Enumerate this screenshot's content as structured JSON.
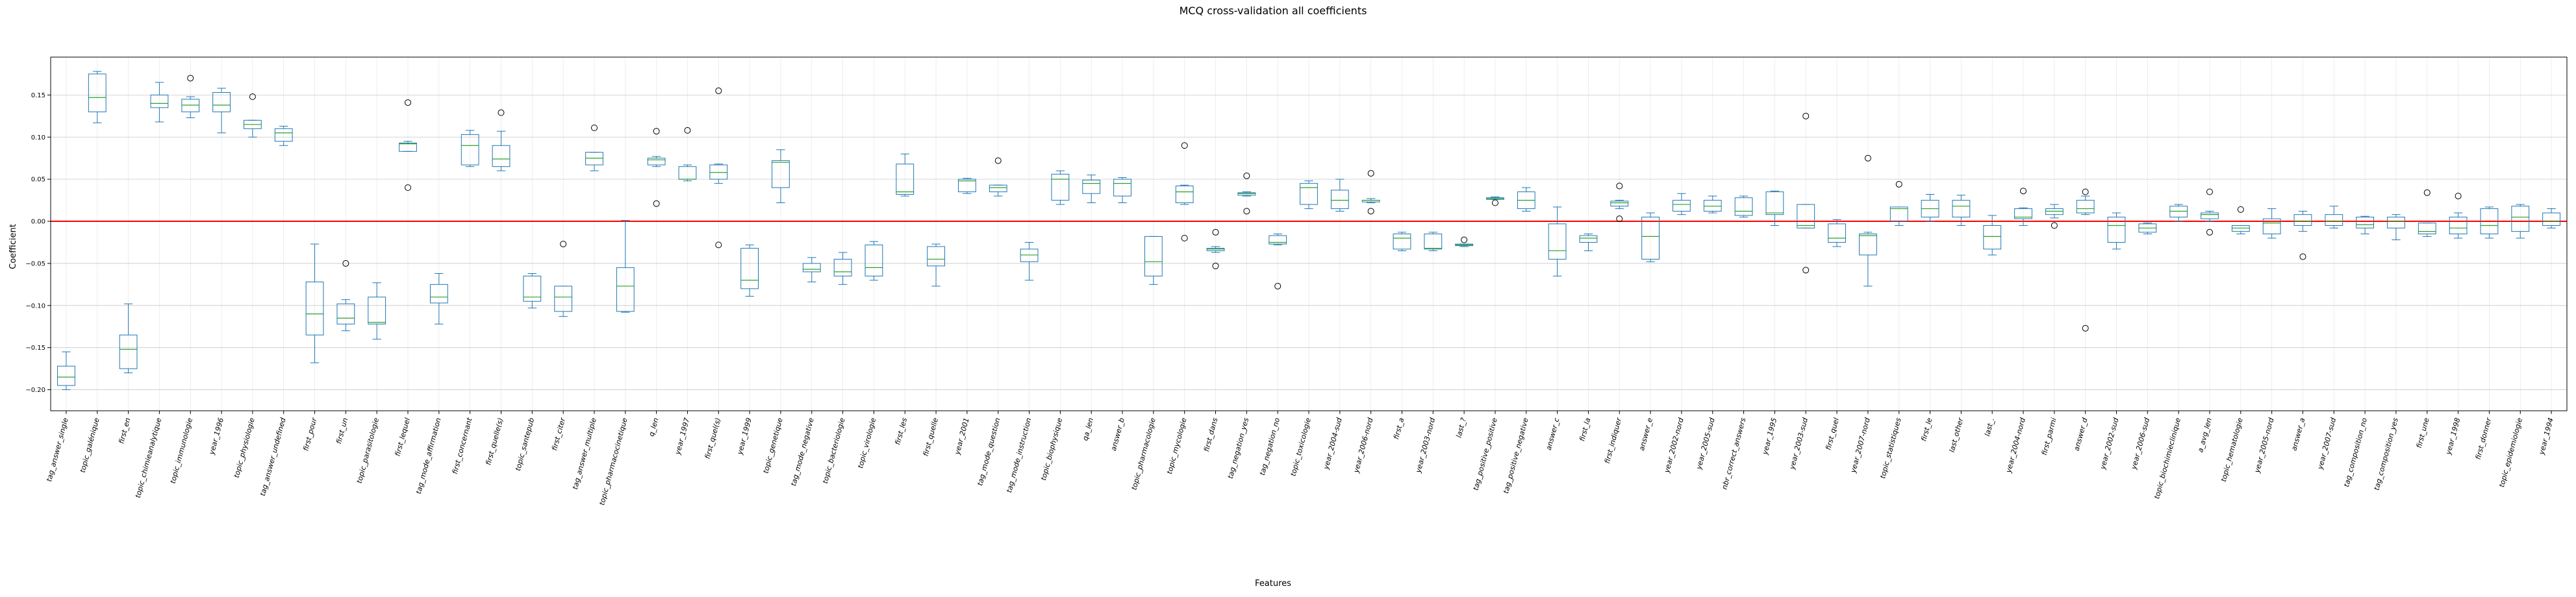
{
  "chart_data": {
    "type": "box",
    "title": "MCQ cross-validation all coefficients",
    "xlabel": "Features",
    "ylabel": "Coefficient",
    "ylim": [
      -0.225,
      0.195
    ],
    "yticks": [
      -0.2,
      -0.15,
      -0.1,
      -0.05,
      0.0,
      0.05,
      0.1,
      0.15
    ],
    "ytick_labels": [
      "−0.20",
      "−0.15",
      "−0.10",
      "−0.05",
      "0.00",
      "0.05",
      "0.10",
      "0.15"
    ],
    "reference_line": 0,
    "grid": true,
    "colors": {
      "box": "#1f77b4",
      "median": "#2ca02c",
      "reference": "#ff0000",
      "grid": "#b0b0b0",
      "axis": "#000000"
    },
    "boxes": [
      {
        "label": "tag_answer_single",
        "min": -0.2,
        "q1": -0.195,
        "median": -0.185,
        "q3": -0.172,
        "max": -0.155,
        "outliers": []
      },
      {
        "label": "topic_galénique",
        "min": 0.117,
        "q1": 0.13,
        "median": 0.147,
        "q3": 0.175,
        "max": 0.178,
        "outliers": []
      },
      {
        "label": "first_en",
        "min": -0.18,
        "q1": -0.175,
        "median": -0.152,
        "q3": -0.135,
        "max": -0.098,
        "outliers": []
      },
      {
        "label": "topic_chimieanalytique",
        "min": 0.118,
        "q1": 0.135,
        "median": 0.14,
        "q3": 0.15,
        "max": 0.165,
        "outliers": []
      },
      {
        "label": "topic_immunologie",
        "min": 0.123,
        "q1": 0.13,
        "median": 0.138,
        "q3": 0.145,
        "max": 0.148,
        "outliers": [
          0.17
        ]
      },
      {
        "label": "year_1996",
        "min": 0.105,
        "q1": 0.13,
        "median": 0.138,
        "q3": 0.153,
        "max": 0.158,
        "outliers": []
      },
      {
        "label": "topic_physiologie",
        "min": 0.1,
        "q1": 0.11,
        "median": 0.115,
        "q3": 0.12,
        "max": 0.12,
        "outliers": [
          0.148
        ]
      },
      {
        "label": "tag_answer_undefined",
        "min": 0.09,
        "q1": 0.095,
        "median": 0.105,
        "q3": 0.11,
        "max": 0.113,
        "outliers": []
      },
      {
        "label": "first_pour",
        "min": -0.168,
        "q1": -0.135,
        "median": -0.11,
        "q3": -0.072,
        "max": -0.027,
        "outliers": []
      },
      {
        "label": "first_un",
        "min": -0.13,
        "q1": -0.122,
        "median": -0.115,
        "q3": -0.098,
        "max": -0.093,
        "outliers": [
          -0.05
        ]
      },
      {
        "label": "topic_parasitologie",
        "min": -0.14,
        "q1": -0.122,
        "median": -0.12,
        "q3": -0.09,
        "max": -0.073,
        "outliers": []
      },
      {
        "label": "first_lequel",
        "min": 0.083,
        "q1": 0.083,
        "median": 0.092,
        "q3": 0.093,
        "max": 0.095,
        "outliers": [
          0.141,
          0.04
        ]
      },
      {
        "label": "tag_mode_affirmation",
        "min": -0.122,
        "q1": -0.097,
        "median": -0.09,
        "q3": -0.075,
        "max": -0.062,
        "outliers": []
      },
      {
        "label": "first_concernant",
        "min": 0.065,
        "q1": 0.067,
        "median": 0.09,
        "q3": 0.103,
        "max": 0.108,
        "outliers": []
      },
      {
        "label": "first_quelle(s)",
        "min": 0.06,
        "q1": 0.065,
        "median": 0.074,
        "q3": 0.09,
        "max": 0.107,
        "outliers": [
          0.129
        ]
      },
      {
        "label": "topic_santepub",
        "min": -0.103,
        "q1": -0.095,
        "median": -0.09,
        "q3": -0.065,
        "max": -0.062,
        "outliers": []
      },
      {
        "label": "first_citer",
        "min": -0.113,
        "q1": -0.107,
        "median": -0.09,
        "q3": -0.077,
        "max": -0.077,
        "outliers": [
          -0.027
        ]
      },
      {
        "label": "tag_answer_multiple",
        "min": 0.06,
        "q1": 0.067,
        "median": 0.075,
        "q3": 0.082,
        "max": 0.082,
        "outliers": [
          0.111
        ]
      },
      {
        "label": "topic_pharmacocinetique",
        "min": -0.108,
        "q1": -0.107,
        "median": -0.077,
        "q3": -0.055,
        "max": 0.001,
        "outliers": []
      },
      {
        "label": "q_len",
        "min": 0.065,
        "q1": 0.067,
        "median": 0.073,
        "q3": 0.075,
        "max": 0.077,
        "outliers": [
          0.107,
          0.021
        ]
      },
      {
        "label": "year_1997",
        "min": 0.048,
        "q1": 0.05,
        "median": 0.05,
        "q3": 0.065,
        "max": 0.067,
        "outliers": [
          0.108
        ]
      },
      {
        "label": "first_quel(s)",
        "min": 0.045,
        "q1": 0.05,
        "median": 0.058,
        "q3": 0.067,
        "max": 0.068,
        "outliers": [
          0.155,
          -0.028
        ]
      },
      {
        "label": "year_1999",
        "min": -0.089,
        "q1": -0.08,
        "median": -0.07,
        "q3": -0.032,
        "max": -0.028,
        "outliers": []
      },
      {
        "label": "topic_genetique",
        "min": 0.022,
        "q1": 0.04,
        "median": 0.07,
        "q3": 0.072,
        "max": 0.085,
        "outliers": []
      },
      {
        "label": "tag_mode_negative",
        "min": -0.072,
        "q1": -0.06,
        "median": -0.057,
        "q3": -0.05,
        "max": -0.043,
        "outliers": []
      },
      {
        "label": "topic_bacteriologie",
        "min": -0.075,
        "q1": -0.065,
        "median": -0.06,
        "q3": -0.045,
        "max": -0.037,
        "outliers": []
      },
      {
        "label": "topic_virologie",
        "min": -0.07,
        "q1": -0.065,
        "median": -0.055,
        "q3": -0.028,
        "max": -0.024,
        "outliers": []
      },
      {
        "label": "first_les",
        "min": 0.03,
        "q1": 0.032,
        "median": 0.035,
        "q3": 0.068,
        "max": 0.08,
        "outliers": []
      },
      {
        "label": "first_quelle",
        "min": -0.077,
        "q1": -0.053,
        "median": -0.045,
        "q3": -0.03,
        "max": -0.027,
        "outliers": []
      },
      {
        "label": "year_2001",
        "min": 0.033,
        "q1": 0.035,
        "median": 0.048,
        "q3": 0.05,
        "max": 0.051,
        "outliers": []
      },
      {
        "label": "tag_mode_question",
        "min": 0.03,
        "q1": 0.035,
        "median": 0.04,
        "q3": 0.043,
        "max": 0.043,
        "outliers": [
          0.072
        ]
      },
      {
        "label": "tag_mode_instruction",
        "min": -0.07,
        "q1": -0.048,
        "median": -0.04,
        "q3": -0.033,
        "max": -0.025,
        "outliers": []
      },
      {
        "label": "topic_biophysique",
        "min": 0.02,
        "q1": 0.025,
        "median": 0.05,
        "q3": 0.056,
        "max": 0.06,
        "outliers": []
      },
      {
        "label": "qa_len",
        "min": 0.022,
        "q1": 0.033,
        "median": 0.045,
        "q3": 0.049,
        "max": 0.055,
        "outliers": []
      },
      {
        "label": "answer_b",
        "min": 0.022,
        "q1": 0.03,
        "median": 0.045,
        "q3": 0.05,
        "max": 0.052,
        "outliers": []
      },
      {
        "label": "topic_pharmacologie",
        "min": -0.075,
        "q1": -0.065,
        "median": -0.048,
        "q3": -0.018,
        "max": -0.018,
        "outliers": []
      },
      {
        "label": "topic_mycologie",
        "min": 0.02,
        "q1": 0.022,
        "median": 0.035,
        "q3": 0.042,
        "max": 0.043,
        "outliers": [
          0.09,
          -0.02
        ]
      },
      {
        "label": "first_dans",
        "min": -0.037,
        "q1": -0.035,
        "median": -0.033,
        "q3": -0.032,
        "max": -0.03,
        "outliers": [
          -0.013,
          -0.053
        ]
      },
      {
        "label": "tag_negation_yes",
        "min": 0.03,
        "q1": 0.031,
        "median": 0.033,
        "q3": 0.034,
        "max": 0.035,
        "outliers": [
          0.054,
          0.012
        ]
      },
      {
        "label": "tag_negation_no",
        "min": -0.028,
        "q1": -0.027,
        "median": -0.025,
        "q3": -0.017,
        "max": -0.015,
        "outliers": [
          -0.077
        ]
      },
      {
        "label": "topic_toxicologie",
        "min": 0.015,
        "q1": 0.02,
        "median": 0.04,
        "q3": 0.045,
        "max": 0.048,
        "outliers": []
      },
      {
        "label": "year_2004-sud",
        "min": 0.012,
        "q1": 0.015,
        "median": 0.025,
        "q3": 0.037,
        "max": 0.05,
        "outliers": []
      },
      {
        "label": "year_2006-nord",
        "min": 0.022,
        "q1": 0.023,
        "median": 0.025,
        "q3": 0.025,
        "max": 0.027,
        "outliers": [
          0.057,
          0.012
        ]
      },
      {
        "label": "first_a",
        "min": -0.035,
        "q1": -0.033,
        "median": -0.02,
        "q3": -0.015,
        "max": -0.013,
        "outliers": []
      },
      {
        "label": "year_2003-nord",
        "min": -0.035,
        "q1": -0.033,
        "median": -0.032,
        "q3": -0.015,
        "max": -0.013,
        "outliers": []
      },
      {
        "label": "last_?",
        "min": -0.03,
        "q1": -0.029,
        "median": -0.028,
        "q3": -0.027,
        "max": -0.027,
        "outliers": [
          -0.022
        ]
      },
      {
        "label": "tag_positive_positive",
        "min": 0.026,
        "q1": 0.026,
        "median": 0.027,
        "q3": 0.028,
        "max": 0.029,
        "outliers": [
          0.022
        ]
      },
      {
        "label": "tag_positive_negative",
        "min": 0.012,
        "q1": 0.015,
        "median": 0.025,
        "q3": 0.035,
        "max": 0.04,
        "outliers": []
      },
      {
        "label": "answer_c",
        "min": -0.065,
        "q1": -0.045,
        "median": -0.035,
        "q3": -0.003,
        "max": 0.017,
        "outliers": []
      },
      {
        "label": "first_la",
        "min": -0.035,
        "q1": -0.025,
        "median": -0.02,
        "q3": -0.017,
        "max": -0.015,
        "outliers": []
      },
      {
        "label": "first_indiquer",
        "min": 0.015,
        "q1": 0.018,
        "median": 0.022,
        "q3": 0.024,
        "max": 0.025,
        "outliers": [
          0.042,
          0.003
        ]
      },
      {
        "label": "answer_e",
        "min": -0.048,
        "q1": -0.045,
        "median": -0.018,
        "q3": 0.005,
        "max": 0.01,
        "outliers": []
      },
      {
        "label": "year_2002-nord",
        "min": 0.008,
        "q1": 0.012,
        "median": 0.02,
        "q3": 0.025,
        "max": 0.033,
        "outliers": []
      },
      {
        "label": "year_2005-sud",
        "min": 0.01,
        "q1": 0.012,
        "median": 0.018,
        "q3": 0.025,
        "max": 0.03,
        "outliers": []
      },
      {
        "label": "nbr_correct_answers",
        "min": 0.005,
        "q1": 0.007,
        "median": 0.012,
        "q3": 0.028,
        "max": 0.03,
        "outliers": []
      },
      {
        "label": "year_1995",
        "min": -0.005,
        "q1": 0.008,
        "median": 0.01,
        "q3": 0.035,
        "max": 0.036,
        "outliers": []
      },
      {
        "label": "year_2003-sud",
        "min": -0.008,
        "q1": -0.008,
        "median": -0.005,
        "q3": 0.02,
        "max": 0.02,
        "outliers": [
          0.125,
          -0.058
        ]
      },
      {
        "label": "first_quel",
        "min": -0.03,
        "q1": -0.025,
        "median": -0.02,
        "q3": -0.003,
        "max": 0.002,
        "outliers": []
      },
      {
        "label": "year_2007-nord",
        "min": -0.077,
        "q1": -0.04,
        "median": -0.017,
        "q3": -0.015,
        "max": -0.013,
        "outliers": [
          0.075
        ]
      },
      {
        "label": "topic_statistiques",
        "min": -0.005,
        "q1": 0.0,
        "median": 0.015,
        "q3": 0.017,
        "max": 0.017,
        "outliers": [
          0.044
        ]
      },
      {
        "label": "first_le",
        "min": 0.0,
        "q1": 0.005,
        "median": 0.015,
        "q3": 0.025,
        "max": 0.032,
        "outliers": []
      },
      {
        "label": "last_other",
        "min": -0.005,
        "q1": 0.005,
        "median": 0.018,
        "q3": 0.025,
        "max": 0.031,
        "outliers": []
      },
      {
        "label": "last_.",
        "min": -0.04,
        "q1": -0.033,
        "median": -0.018,
        "q3": -0.005,
        "max": 0.007,
        "outliers": []
      },
      {
        "label": "year_2004-nord",
        "min": -0.005,
        "q1": 0.003,
        "median": 0.005,
        "q3": 0.015,
        "max": 0.016,
        "outliers": [
          0.036
        ]
      },
      {
        "label": "first_parmi",
        "min": 0.004,
        "q1": 0.008,
        "median": 0.012,
        "q3": 0.015,
        "max": 0.02,
        "outliers": [
          -0.005
        ]
      },
      {
        "label": "answer_d",
        "min": 0.008,
        "q1": 0.01,
        "median": 0.015,
        "q3": 0.025,
        "max": 0.03,
        "outliers": [
          0.035,
          -0.127
        ]
      },
      {
        "label": "year_2002-sud",
        "min": -0.033,
        "q1": -0.025,
        "median": -0.005,
        "q3": 0.005,
        "max": 0.01,
        "outliers": []
      },
      {
        "label": "year_2006-sud",
        "min": -0.015,
        "q1": -0.013,
        "median": -0.008,
        "q3": -0.003,
        "max": -0.002,
        "outliers": []
      },
      {
        "label": "topic_biochimieclinique",
        "min": 0.0,
        "q1": 0.005,
        "median": 0.012,
        "q3": 0.018,
        "max": 0.02,
        "outliers": []
      },
      {
        "label": "a_avg_len",
        "min": 0.0,
        "q1": 0.003,
        "median": 0.008,
        "q3": 0.01,
        "max": 0.012,
        "outliers": [
          0.035,
          -0.013
        ]
      },
      {
        "label": "topic_hematologie",
        "min": -0.015,
        "q1": -0.012,
        "median": -0.008,
        "q3": -0.005,
        "max": -0.005,
        "outliers": [
          0.014
        ]
      },
      {
        "label": "year_2005-nord",
        "min": -0.02,
        "q1": -0.015,
        "median": -0.002,
        "q3": 0.003,
        "max": 0.015,
        "outliers": []
      },
      {
        "label": "answer_a",
        "min": -0.012,
        "q1": -0.005,
        "median": 0.0,
        "q3": 0.008,
        "max": 0.012,
        "outliers": [
          -0.042
        ]
      },
      {
        "label": "year_2007-sud",
        "min": -0.008,
        "q1": -0.005,
        "median": 0.0,
        "q3": 0.008,
        "max": 0.018,
        "outliers": []
      },
      {
        "label": "tag_composition_no",
        "min": -0.015,
        "q1": -0.008,
        "median": -0.004,
        "q3": 0.005,
        "max": 0.006,
        "outliers": []
      },
      {
        "label": "tag_composition_yes",
        "min": -0.022,
        "q1": -0.008,
        "median": 0.0,
        "q3": 0.005,
        "max": 0.008,
        "outliers": []
      },
      {
        "label": "first_une",
        "min": -0.018,
        "q1": -0.015,
        "median": -0.012,
        "q3": -0.002,
        "max": -0.002,
        "outliers": [
          0.034
        ]
      },
      {
        "label": "year_1998",
        "min": -0.02,
        "q1": -0.015,
        "median": -0.008,
        "q3": 0.005,
        "max": 0.01,
        "outliers": [
          0.03
        ]
      },
      {
        "label": "first_donner",
        "min": -0.02,
        "q1": -0.015,
        "median": -0.005,
        "q3": 0.015,
        "max": 0.017,
        "outliers": []
      },
      {
        "label": "topic_epidemiologie",
        "min": -0.02,
        "q1": -0.012,
        "median": 0.005,
        "q3": 0.018,
        "max": 0.02,
        "outliers": []
      },
      {
        "label": "year_1994",
        "min": -0.008,
        "q1": -0.005,
        "median": 0.0,
        "q3": 0.01,
        "max": 0.015,
        "outliers": []
      }
    ]
  }
}
